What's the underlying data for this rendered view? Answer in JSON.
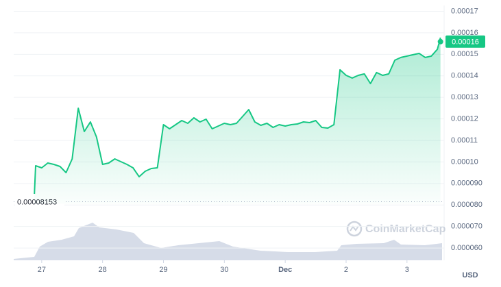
{
  "chart_data": {
    "type": "line",
    "x": [
      26.88,
      26.9,
      27.0,
      27.1,
      27.2,
      27.3,
      27.4,
      27.5,
      27.6,
      27.7,
      27.8,
      27.9,
      28.0,
      28.1,
      28.2,
      28.3,
      28.4,
      28.5,
      28.6,
      28.7,
      28.8,
      28.9,
      29.0,
      29.1,
      29.2,
      29.3,
      29.4,
      29.5,
      29.6,
      29.7,
      29.8,
      29.9,
      30.0,
      30.1,
      30.2,
      30.3,
      30.4,
      30.5,
      30.6,
      30.7,
      30.8,
      30.9,
      31.0,
      31.1,
      31.2,
      31.3,
      31.4,
      31.5,
      31.6,
      31.7,
      31.8,
      31.9,
      32.0,
      32.1,
      32.2,
      32.3,
      32.4,
      32.5,
      32.6,
      32.7,
      32.8,
      32.9,
      33.0,
      33.1,
      33.2,
      33.3,
      33.4,
      33.5,
      33.55
    ],
    "values": [
      8.516e-05,
      9.822e-05,
      9.726e-05,
      9.949e-05,
      9.885e-05,
      9.79e-05,
      9.503e-05,
      0.0001014,
      0.00012497,
      0.00011414,
      0.0001186,
      0.00011159,
      9.885e-05,
      9.949e-05,
      0.0001014,
      0.00010013,
      9.885e-05,
      9.726e-05,
      9.312e-05,
      9.567e-05,
      9.694e-05,
      9.726e-05,
      0.00011732,
      0.00011541,
      0.00011732,
      0.00011924,
      0.00011796,
      0.00012051,
      0.0001186,
      0.00011987,
      0.00011541,
      0.00011669,
      0.00011796,
      0.00011732,
      0.00011796,
      0.00012115,
      0.00012433,
      0.0001186,
      0.00011701,
      0.00011796,
      0.00011605,
      0.00011732,
      0.00011669,
      0.00011732,
      0.00011764,
      0.0001186,
      0.00011828,
      0.00011924,
      0.00011605,
      0.00011573,
      0.00011732,
      0.0001428,
      0.00014025,
      0.00013898,
      0.00014025,
      0.00014089,
      0.00013643,
      0.00014153,
      0.00014025,
      0.00014089,
      0.00014726,
      0.00014854,
      0.00014917,
      0.00014981,
      0.00015045,
      0.00014854,
      0.00014917,
      0.00015236,
      0.00015777
    ],
    "color": "#16c784",
    "xlim": [
      26.54,
      33.61
    ],
    "xticks": [
      27,
      28,
      29,
      30,
      {
        "value": 31,
        "label": "Dec"
      },
      {
        "value": 32,
        "label": "2"
      },
      {
        "value": 33,
        "label": "3"
      }
    ],
    "ylim": [
      5.43e-05,
      0.0001727
    ],
    "yticks": [
      0.00017,
      0.00016,
      0.00015,
      0.00014,
      0.00013,
      0.00012,
      0.00011,
      {
        "value": 0.0001,
        "label": "0.00010"
      },
      {
        "value": 9e-05,
        "label": "0.000090"
      },
      {
        "value": 8e-05,
        "label": "0.000080"
      },
      {
        "value": 7e-05,
        "label": "0.000070"
      },
      {
        "value": 6e-05,
        "label": "0.000060"
      }
    ],
    "grid": true,
    "reference_line": 8.153e-05,
    "current_price": {
      "value": 0.0001559,
      "label": "0.00016"
    },
    "watermark": "CoinMarketCap",
    "currency": "USD"
  }
}
